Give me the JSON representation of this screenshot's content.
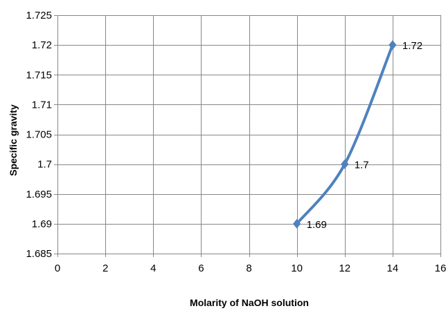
{
  "chart_data": {
    "type": "line",
    "title": "",
    "xlabel": "Molarity of NaOH solution",
    "ylabel": "Specific gravity",
    "xlim": [
      0,
      16
    ],
    "ylim": [
      1.685,
      1.725
    ],
    "x_ticks": [
      0,
      2,
      4,
      6,
      8,
      10,
      12,
      14,
      16
    ],
    "y_ticks": [
      1.685,
      1.69,
      1.695,
      1.7,
      1.705,
      1.71,
      1.715,
      1.72,
      1.725
    ],
    "x_tick_labels": [
      "0",
      "2",
      "4",
      "6",
      "8",
      "10",
      "12",
      "14",
      "16"
    ],
    "y_tick_labels": [
      "1.685",
      "1.69",
      "1.695",
      "1.7",
      "1.705",
      "1.71",
      "1.715",
      "1.72",
      "1.725"
    ],
    "grid": true,
    "legend": "none",
    "series": [
      {
        "x": [
          10,
          12,
          14
        ],
        "values": [
          1.69,
          1.7,
          1.72
        ],
        "data_labels": [
          "1.69",
          "1.7",
          "1.72"
        ],
        "color": "#4F81BD",
        "marker": "diamond",
        "smooth": true
      }
    ]
  }
}
